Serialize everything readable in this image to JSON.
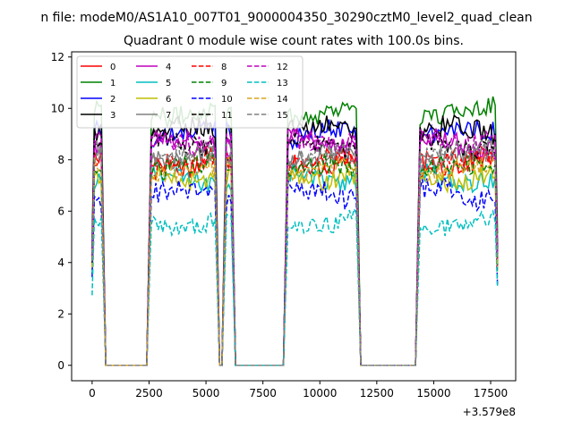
{
  "suptitle": "n file: modeM0/AS1A10_007T01_9000004350_30290cztM0_level2_quad_clean",
  "chart_data": {
    "type": "line",
    "title": "Quadrant 0 module wise count rates with 100.0s bins.",
    "xlabel": "",
    "ylabel": "",
    "xlim": [
      -900,
      18600
    ],
    "ylim": [
      -0.6,
      12.2
    ],
    "x_offset_label": "+3.579e8",
    "xticks": [
      0,
      2500,
      5000,
      7500,
      10000,
      12500,
      15000,
      17500
    ],
    "xtick_labels": [
      "0",
      "2500",
      "5000",
      "7500",
      "10000",
      "12500",
      "15000",
      "17500"
    ],
    "yticks": [
      0,
      2,
      4,
      6,
      8,
      10,
      12
    ],
    "ytick_labels": [
      "0",
      "2",
      "4",
      "6",
      "8",
      "10",
      "12"
    ],
    "grid": false,
    "legend_position": "top-left",
    "legend_columns": 4,
    "segments": [
      {
        "start": 0,
        "end": 500
      },
      {
        "start": 2500,
        "end": 5500
      },
      {
        "start": 5800,
        "end": 6200
      },
      {
        "start": 8500,
        "end": 11700
      },
      {
        "start": 14300,
        "end": 17800
      }
    ],
    "series": [
      {
        "name": "0",
        "color": "#ff0000",
        "dash": "solid",
        "base": 8.0,
        "amp": 0.45
      },
      {
        "name": "1",
        "color": "#008000",
        "dash": "solid",
        "base": 9.9,
        "amp": 0.4
      },
      {
        "name": "2",
        "color": "#0000ff",
        "dash": "solid",
        "base": 9.0,
        "amp": 0.4
      },
      {
        "name": "3",
        "color": "#000000",
        "dash": "solid",
        "base": 9.1,
        "amp": 0.4
      },
      {
        "name": "4",
        "color": "#bf00bf",
        "dash": "solid",
        "base": 8.6,
        "amp": 0.4
      },
      {
        "name": "5",
        "color": "#00bfbf",
        "dash": "solid",
        "base": 7.3,
        "amp": 0.4
      },
      {
        "name": "6",
        "color": "#bfbf00",
        "dash": "solid",
        "base": 7.4,
        "amp": 0.4
      },
      {
        "name": "7",
        "color": "#808080",
        "dash": "solid",
        "base": 8.2,
        "amp": 0.4
      },
      {
        "name": "8",
        "color": "#ff0000",
        "dash": "dashed",
        "base": 7.9,
        "amp": 0.45
      },
      {
        "name": "9",
        "color": "#008000",
        "dash": "dashed",
        "base": 7.6,
        "amp": 0.4
      },
      {
        "name": "10",
        "color": "#0000ff",
        "dash": "dashed",
        "base": 6.6,
        "amp": 0.45
      },
      {
        "name": "11",
        "color": "#000000",
        "dash": "dashed",
        "base": 8.6,
        "amp": 0.4
      },
      {
        "name": "12",
        "color": "#bf00bf",
        "dash": "dashed",
        "base": 8.8,
        "amp": 0.4
      },
      {
        "name": "13",
        "color": "#00bfbf",
        "dash": "dashed",
        "base": 5.6,
        "amp": 0.35
      },
      {
        "name": "14",
        "color": "#daa520",
        "dash": "dashed",
        "base": 7.6,
        "amp": 0.4
      },
      {
        "name": "15",
        "color": "#808080",
        "dash": "dashed",
        "base": 8.1,
        "amp": 0.4
      }
    ]
  }
}
